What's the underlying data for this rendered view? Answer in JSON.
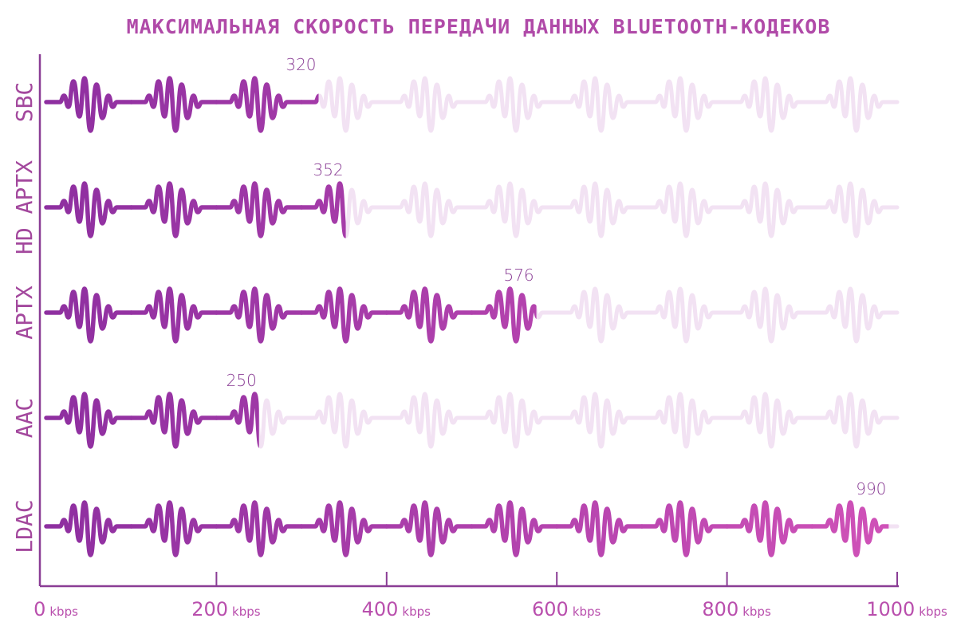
{
  "chart_data": {
    "type": "bar",
    "orientation": "horizontal",
    "title": "МАКСИМАЛЬНАЯ СКОРОСТЬ ПЕРЕДАЧИ ДАННЫХ BLUETOOTH-КОДЕКОВ",
    "categories": [
      "SBC",
      "HD APTX",
      "APTX",
      "AAC",
      "LDAC"
    ],
    "values": [
      320,
      352,
      576,
      250,
      990
    ],
    "value_labels": [
      "320",
      "352",
      "576",
      "250",
      "990"
    ],
    "xlim": [
      0,
      1000
    ],
    "xticks": [
      {
        "value": 0,
        "number": "0",
        "unit": "kbps"
      },
      {
        "value": 200,
        "number": "200",
        "unit": "kbps"
      },
      {
        "value": 400,
        "number": "400",
        "unit": "kbps"
      },
      {
        "value": 600,
        "number": "600",
        "unit": "kbps"
      },
      {
        "value": 800,
        "number": "800",
        "unit": "kbps"
      },
      {
        "value": 1000,
        "number": "1000",
        "unit": "kbps"
      }
    ],
    "mark": "sound-wave-icon",
    "grid": false,
    "legend": "none",
    "colors": {
      "title": "#b04aa8",
      "bar_start": "#8e2fa0",
      "bar_end": "#d052b8",
      "track": "#f2e2f3",
      "axis": "#8a3d95",
      "label": "#a3489d",
      "tick_text": "#b94fad"
    }
  }
}
